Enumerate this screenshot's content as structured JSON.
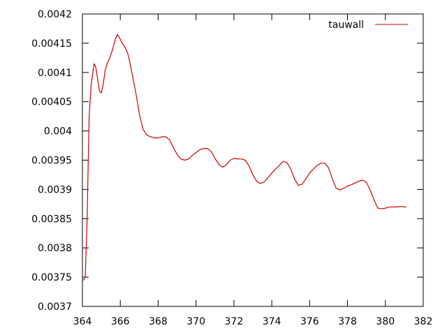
{
  "chart_data": {
    "type": "line",
    "title": "",
    "xlabel": "",
    "ylabel": "",
    "xlim": [
      364,
      382
    ],
    "ylim": [
      0.0037,
      0.0042
    ],
    "xticks": [
      364,
      366,
      368,
      370,
      372,
      374,
      376,
      378,
      380,
      382
    ],
    "xtick_labels": [
      "364",
      "366",
      "368",
      "370",
      "372",
      "374",
      "376",
      "378",
      "380",
      "382"
    ],
    "yticks": [
      0.0037,
      0.00375,
      0.0038,
      0.00385,
      0.0039,
      0.00395,
      0.004,
      0.00405,
      0.0041,
      0.00415,
      0.0042
    ],
    "ytick_labels": [
      "0.0037",
      "0.00375",
      "0.0038",
      "0.00385",
      "0.0039",
      "0.00395",
      "0.004",
      "0.00405",
      "0.0041",
      "0.00415",
      "0.0042"
    ],
    "grid": false,
    "legend": "top-right",
    "line_color": "#cc0000",
    "series": [
      {
        "name": "tauwall",
        "x": [
          364.05,
          364.15,
          364.25,
          364.35,
          364.45,
          364.55,
          364.62,
          364.7,
          364.8,
          364.9,
          365.0,
          365.1,
          365.2,
          365.3,
          365.45,
          365.6,
          365.75,
          365.85,
          365.95,
          366.1,
          366.25,
          366.4,
          366.55,
          366.7,
          366.85,
          367.0,
          367.2,
          367.4,
          367.6,
          367.8,
          368.0,
          368.2,
          368.4,
          368.6,
          368.8,
          369.0,
          369.2,
          369.4,
          369.6,
          369.8,
          370.0,
          370.2,
          370.4,
          370.6,
          370.8,
          371.0,
          371.2,
          371.4,
          371.6,
          371.8,
          372.0,
          372.2,
          372.4,
          372.6,
          372.8,
          373.0,
          373.2,
          373.4,
          373.6,
          373.8,
          374.0,
          374.2,
          374.4,
          374.6,
          374.8,
          375.0,
          375.2,
          375.4,
          375.6,
          375.8,
          376.0,
          376.2,
          376.4,
          376.6,
          376.8,
          377.0,
          377.2,
          377.4,
          377.6,
          377.8,
          378.0,
          378.2,
          378.4,
          378.6,
          378.8,
          379.0,
          379.2,
          379.4,
          379.6,
          379.8,
          380.0,
          380.2,
          380.4,
          380.6,
          380.8,
          381.0,
          381.1
        ],
        "y": [
          0.003745,
          0.00375,
          0.00385,
          0.00402,
          0.004075,
          0.0041,
          0.004115,
          0.00411,
          0.00409,
          0.004068,
          0.004065,
          0.00408,
          0.004103,
          0.004115,
          0.004125,
          0.00414,
          0.004158,
          0.004165,
          0.00416,
          0.00415,
          0.004143,
          0.004132,
          0.00411,
          0.004085,
          0.00406,
          0.00403,
          0.004003,
          0.003993,
          0.00399,
          0.003988,
          0.003988,
          0.00399,
          0.00399,
          0.003985,
          0.003972,
          0.00396,
          0.003952,
          0.00395,
          0.003952,
          0.003958,
          0.003963,
          0.003968,
          0.00397,
          0.00397,
          0.003965,
          0.003953,
          0.003943,
          0.003938,
          0.003942,
          0.00395,
          0.003953,
          0.003952,
          0.003952,
          0.00395,
          0.00394,
          0.003925,
          0.003914,
          0.00391,
          0.003913,
          0.00392,
          0.003928,
          0.003935,
          0.003941,
          0.003948,
          0.003946,
          0.003935,
          0.003918,
          0.003907,
          0.003909,
          0.003918,
          0.003928,
          0.003935,
          0.003941,
          0.003945,
          0.003945,
          0.003937,
          0.003918,
          0.003902,
          0.003899,
          0.003902,
          0.003906,
          0.003908,
          0.003911,
          0.003914,
          0.003916,
          0.003912,
          0.003899,
          0.003882,
          0.003868,
          0.003867,
          0.003868,
          0.00387,
          0.00387,
          0.00387,
          0.003871,
          0.00387,
          0.00387
        ]
      }
    ]
  }
}
